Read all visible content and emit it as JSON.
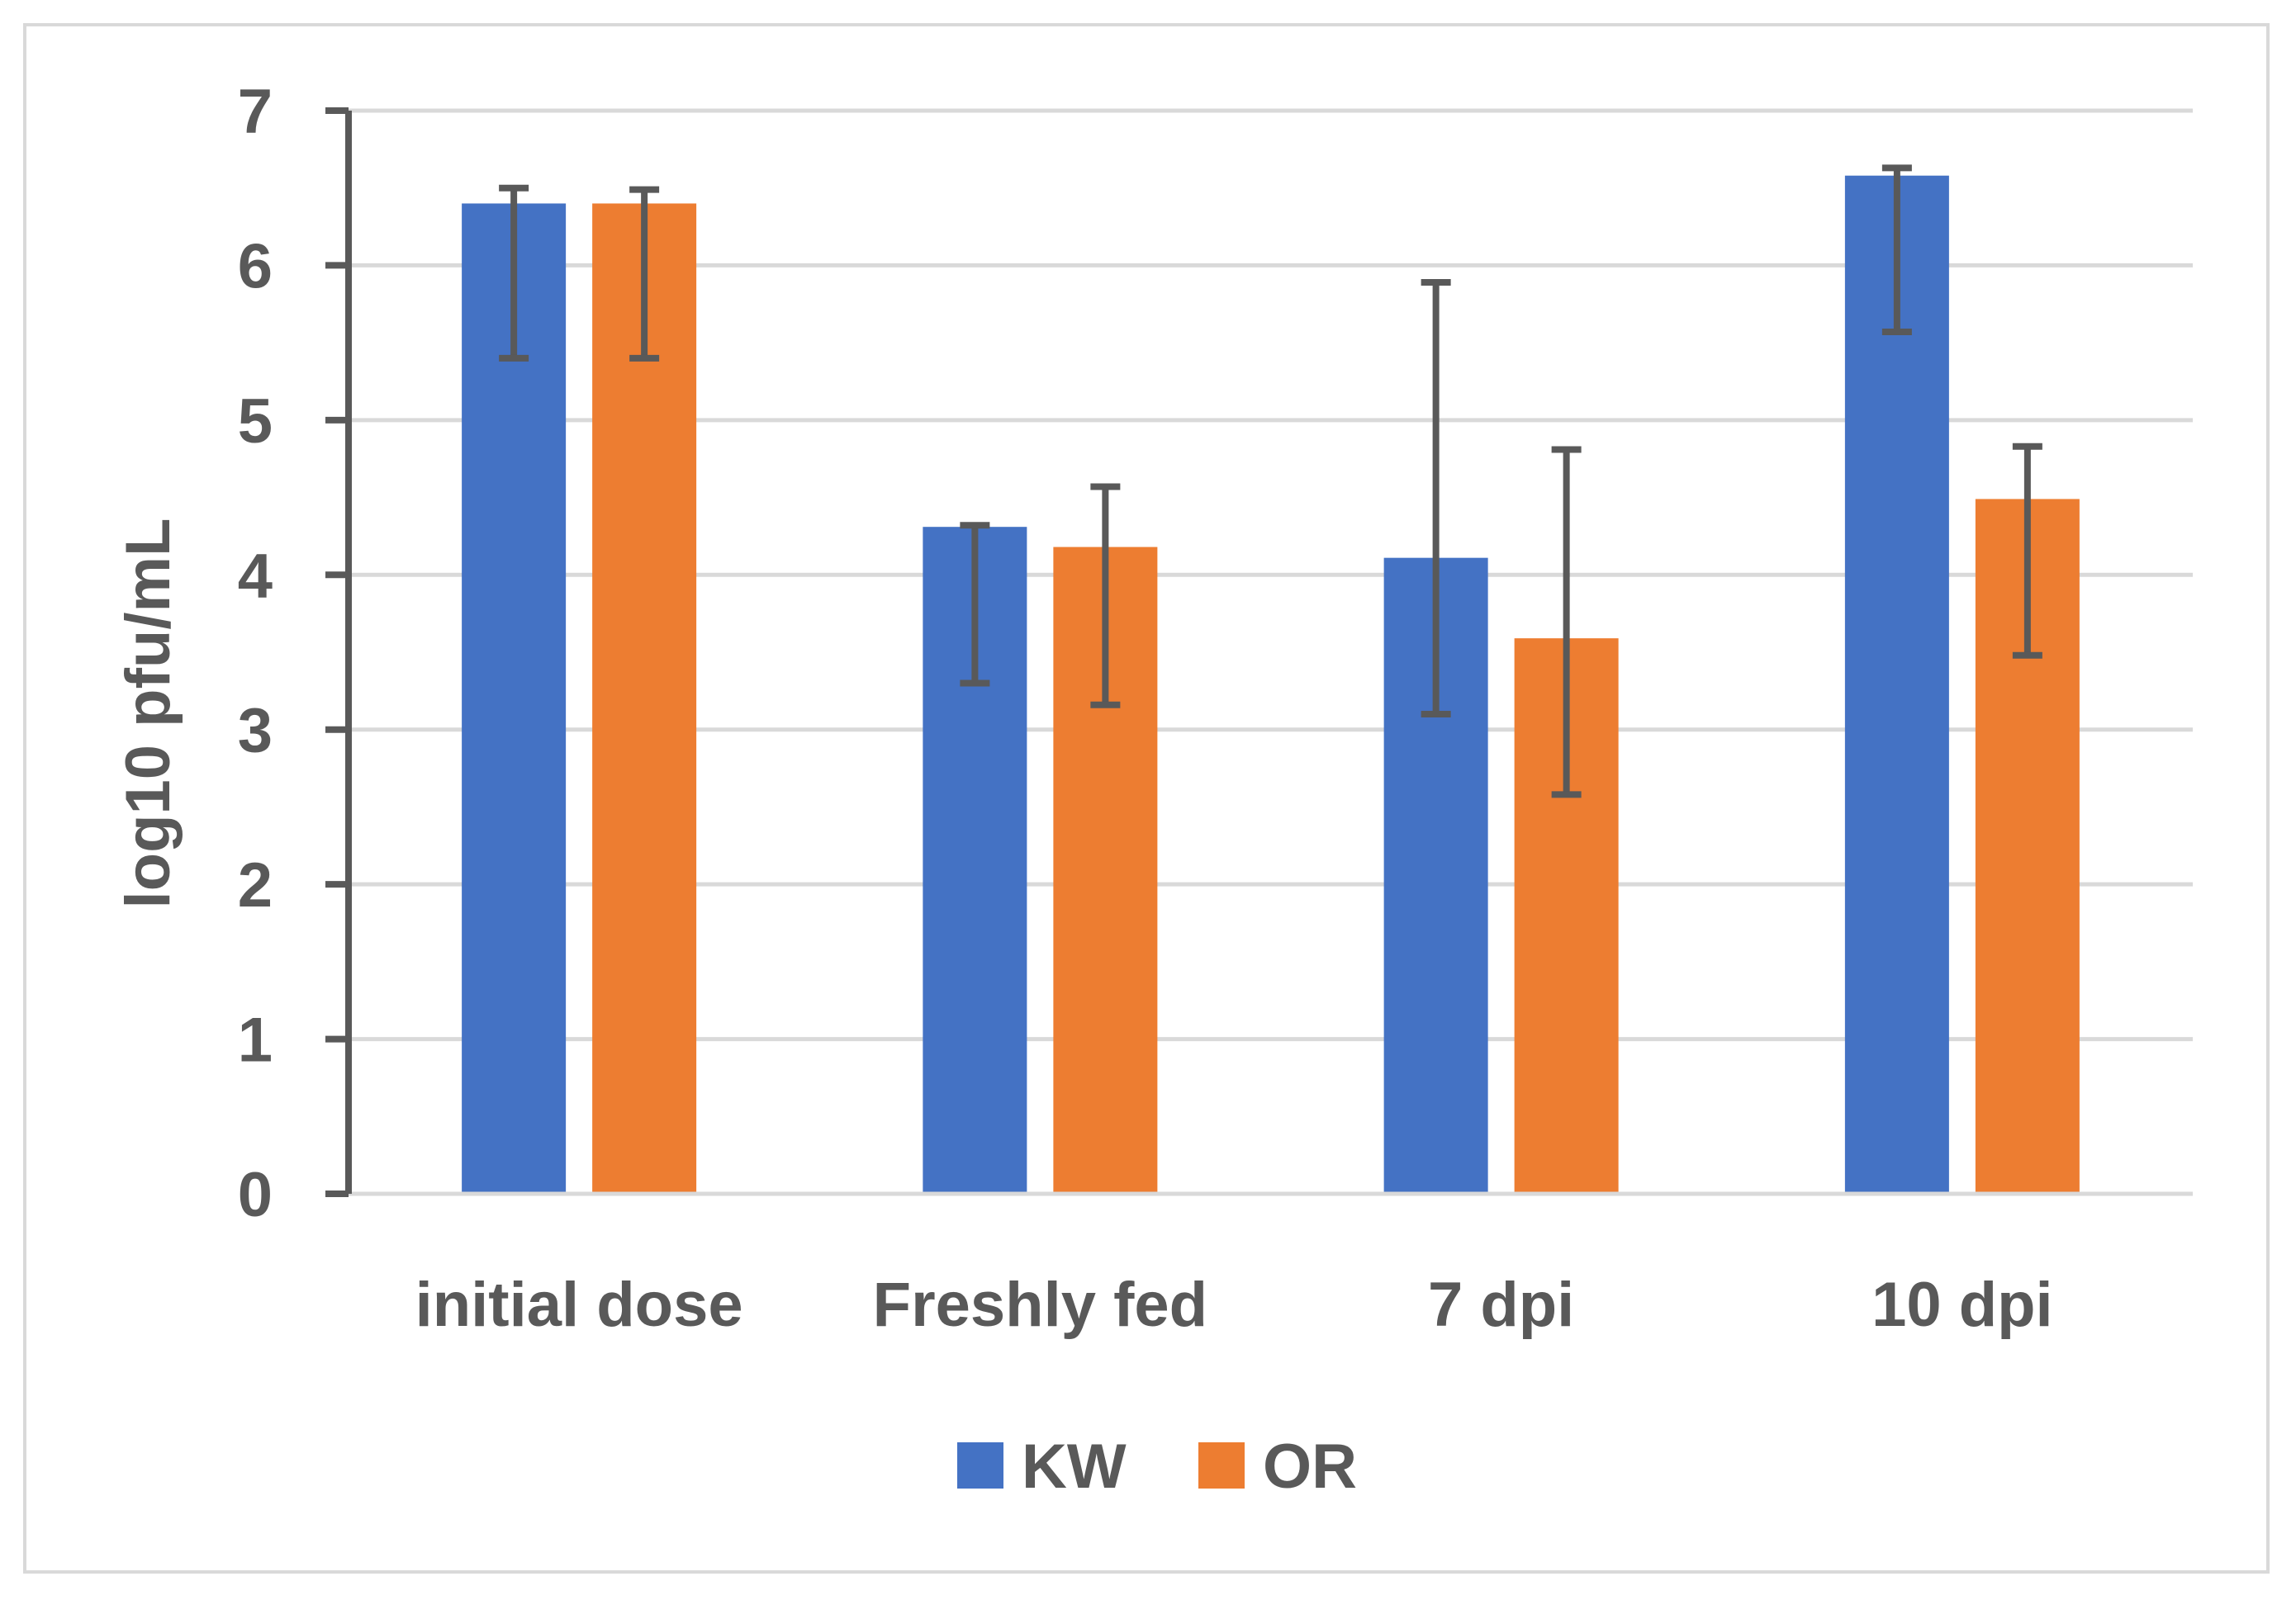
{
  "chart_data": {
    "type": "bar",
    "title": "",
    "xlabel": "",
    "ylabel": "log10 pfu/mL",
    "ylim": [
      0,
      7
    ],
    "yticks": [
      0,
      1,
      2,
      3,
      4,
      5,
      6,
      7
    ],
    "grid": true,
    "legend_position": "bottom",
    "categories": [
      "initial dose",
      "Freshly fed",
      "7 dpi",
      "10 dpi"
    ],
    "series": [
      {
        "name": "KW",
        "color": "#4472c4",
        "values": [
          6.4,
          4.31,
          4.11,
          6.58
        ],
        "error_low": [
          5.4,
          3.3,
          3.1,
          5.57
        ],
        "error_high": [
          6.5,
          4.32,
          5.89,
          6.63
        ]
      },
      {
        "name": "OR",
        "color": "#ed7d31",
        "values": [
          6.4,
          4.18,
          3.59,
          4.49
        ],
        "error_low": [
          5.4,
          3.16,
          2.58,
          3.48
        ],
        "error_high": [
          6.49,
          4.57,
          4.81,
          4.83
        ]
      }
    ],
    "colors": {
      "gridline": "#d9d9d9",
      "axis": "#595959",
      "error_bar": "#595959",
      "text": "#595959"
    }
  }
}
